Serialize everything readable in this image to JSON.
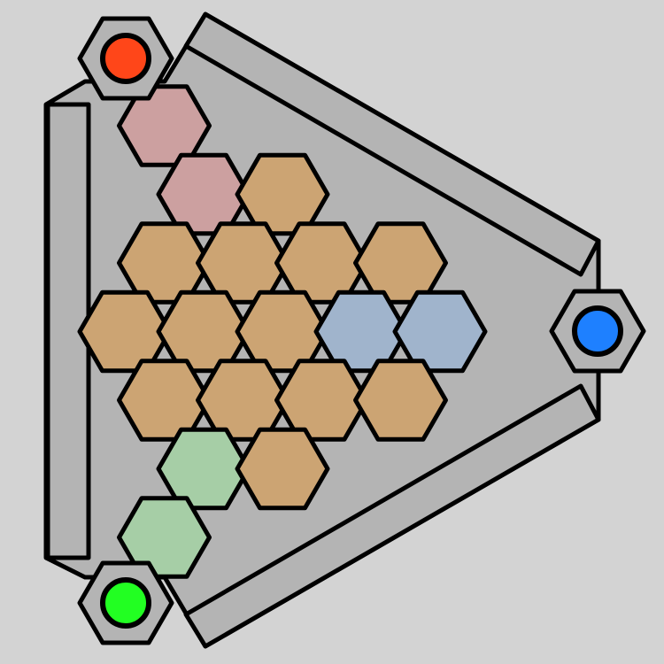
{
  "game": {
    "type": "hex-board",
    "background_color": "#d3d3d3",
    "board_color": "#b4b4b4",
    "outline_color": "#000000",
    "hex_colors": {
      "neutral": "#cca473",
      "red": "#cca0a0",
      "blue": "#a0b4cc",
      "green": "#a6cea6"
    },
    "home_colors": {
      "red": "#ff4619",
      "blue": "#1e80ff",
      "green": "#22ff22"
    },
    "home_fill": "#b4b4b4",
    "rows": [
      [
        "red"
      ],
      [
        "red",
        "neutral"
      ],
      [
        "neutral",
        "neutral",
        "neutral",
        "neutral"
      ],
      [
        "neutral",
        "neutral",
        "neutral",
        "blue",
        "blue"
      ],
      [
        "neutral",
        "neutral",
        "neutral",
        "neutral"
      ],
      [
        "green",
        "neutral"
      ],
      [
        "green"
      ]
    ],
    "homes": [
      "red",
      "blue",
      "green"
    ]
  }
}
